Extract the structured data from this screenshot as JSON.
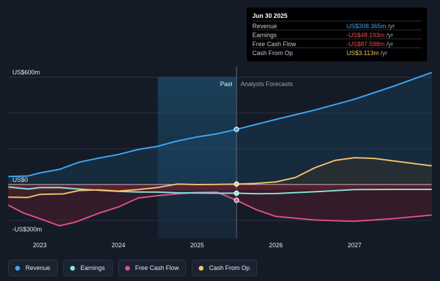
{
  "chart_data": {
    "type": "area",
    "title": "",
    "y_axis": {
      "labels": [
        {
          "text": "US$600m",
          "value": 600
        },
        {
          "text": "US$0",
          "value": 0
        },
        {
          "text": "-US$300m",
          "value": -300
        }
      ],
      "range": [
        -300,
        600
      ]
    },
    "x_axis": {
      "range": [
        2022.6,
        2027.98
      ],
      "ticks": [
        {
          "label": "2023",
          "value": 2023
        },
        {
          "label": "2024",
          "value": 2024
        },
        {
          "label": "2025",
          "value": 2025
        },
        {
          "label": "2026",
          "value": 2026
        },
        {
          "label": "2027",
          "value": 2027
        }
      ]
    },
    "past_label": "Past",
    "forecast_label": "Analysts Forecasts",
    "past_end": 2025.5,
    "highlight_start": 2024.5,
    "series": [
      {
        "name": "Revenue",
        "color": "#3da7f5",
        "dashed": false,
        "points": [
          [
            2022.6,
            45
          ],
          [
            2022.85,
            48
          ],
          [
            2023.0,
            65
          ],
          [
            2023.25,
            85
          ],
          [
            2023.5,
            125
          ],
          [
            2023.75,
            148
          ],
          [
            2024.0,
            168
          ],
          [
            2024.25,
            196
          ],
          [
            2024.5,
            214
          ],
          [
            2024.75,
            244
          ],
          [
            2025.0,
            266
          ],
          [
            2025.25,
            283
          ],
          [
            2025.5,
            308.365
          ],
          [
            2025.75,
            336
          ],
          [
            2026.0,
            364
          ],
          [
            2026.5,
            417
          ],
          [
            2027.0,
            477
          ],
          [
            2027.5,
            550
          ],
          [
            2027.98,
            626
          ]
        ]
      },
      {
        "name": "Cash From Op",
        "color": "#f0c26e",
        "dashed": false,
        "points": [
          [
            2022.6,
            -70
          ],
          [
            2022.85,
            -72
          ],
          [
            2023.0,
            -55
          ],
          [
            2023.3,
            -52
          ],
          [
            2023.5,
            -33
          ],
          [
            2023.75,
            -30
          ],
          [
            2024.0,
            -36
          ],
          [
            2024.25,
            -28
          ],
          [
            2024.5,
            -16
          ],
          [
            2024.75,
            3
          ],
          [
            2025.0,
            0
          ],
          [
            2025.25,
            1
          ],
          [
            2025.5,
            3.113
          ],
          [
            2025.75,
            7
          ],
          [
            2026.0,
            15
          ],
          [
            2026.25,
            40
          ],
          [
            2026.5,
            95
          ],
          [
            2026.75,
            135
          ],
          [
            2027.0,
            150
          ],
          [
            2027.25,
            146
          ],
          [
            2027.5,
            132
          ],
          [
            2027.98,
            105
          ]
        ]
      },
      {
        "name": "Earnings",
        "color": "#86e6de",
        "dashed": false,
        "points": [
          [
            2022.6,
            -13
          ],
          [
            2022.85,
            -25
          ],
          [
            2023.0,
            -17
          ],
          [
            2023.25,
            -16
          ],
          [
            2023.5,
            -25
          ],
          [
            2023.75,
            -32
          ],
          [
            2024.0,
            -38
          ],
          [
            2024.25,
            -41
          ],
          [
            2024.5,
            -42
          ],
          [
            2024.75,
            -46
          ],
          [
            2025.0,
            -47
          ],
          [
            2025.25,
            -48
          ],
          [
            2025.5,
            -48.193
          ],
          [
            2025.75,
            -51
          ],
          [
            2026.0,
            -50
          ],
          [
            2026.5,
            -40
          ],
          [
            2027.0,
            -28
          ],
          [
            2027.5,
            -27
          ],
          [
            2027.98,
            -27
          ]
        ]
      },
      {
        "name": "Free Cash Flow",
        "color": "#e3508a",
        "dashed": false,
        "points": [
          [
            2022.6,
            -115
          ],
          [
            2022.8,
            -160
          ],
          [
            2023.0,
            -190
          ],
          [
            2023.25,
            -230
          ],
          [
            2023.45,
            -210
          ],
          [
            2023.75,
            -160
          ],
          [
            2024.0,
            -125
          ],
          [
            2024.25,
            -75
          ],
          [
            2024.5,
            -62
          ],
          [
            2024.75,
            -52
          ],
          [
            2025.0,
            -44
          ],
          [
            2025.25,
            -42
          ],
          [
            2025.5,
            -87.598
          ],
          [
            2025.75,
            -140
          ],
          [
            2026.0,
            -178
          ],
          [
            2026.5,
            -198
          ],
          [
            2027.0,
            -205
          ],
          [
            2027.5,
            -190
          ],
          [
            2027.98,
            -170
          ]
        ]
      }
    ]
  },
  "tooltip": {
    "date": "Jun 30 2025",
    "rows": [
      {
        "label": "Revenue",
        "value": "US$308.365m",
        "unit": "/yr",
        "color": "#3da7f5"
      },
      {
        "label": "Earnings",
        "value": "-US$48.193m",
        "unit": "/yr",
        "color": "#f04d4d"
      },
      {
        "label": "Free Cash Flow",
        "value": "-US$87.598m",
        "unit": "/yr",
        "color": "#f04d4d"
      },
      {
        "label": "Cash From Op",
        "value": "US$3.113m",
        "unit": "/yr",
        "color": "#f0c26e"
      }
    ]
  },
  "legend": [
    {
      "label": "Revenue",
      "color": "#3da7f5"
    },
    {
      "label": "Earnings",
      "color": "#86e6de"
    },
    {
      "label": "Free Cash Flow",
      "color": "#e3508a"
    },
    {
      "label": "Cash From Op",
      "color": "#f0c26e"
    }
  ]
}
